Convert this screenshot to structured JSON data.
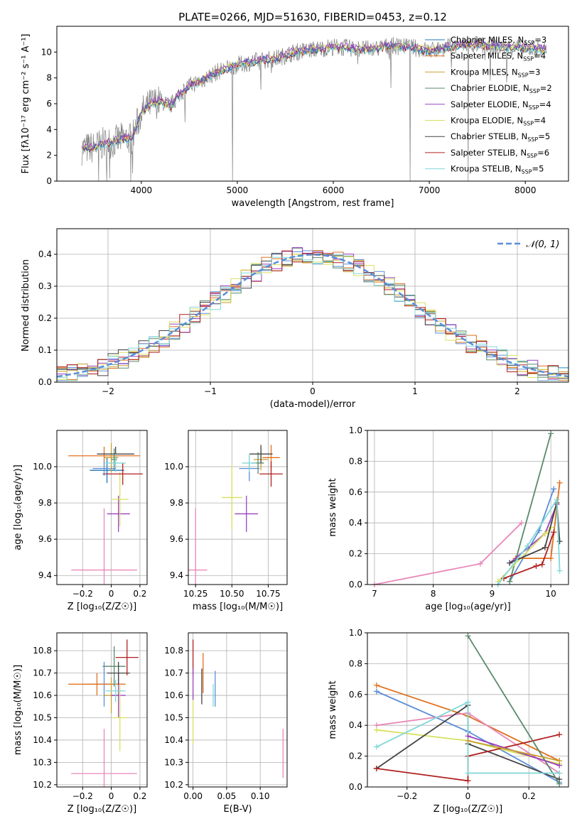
{
  "figure": {
    "title": "PLATE=0266, MJD=51630, FIBERID=0453, z=0.12"
  },
  "colors": {
    "Chabrier MILES": "#1f77b4",
    "Salpeter MILES": "#e07020",
    "Kroupa MILES": "#c8a030",
    "Chabrier ELODIE": "#5a8a6a",
    "Salpeter ELODIE": "#9a40c0",
    "Kroupa ELODIE": "#d8e060",
    "Chabrier STELIB": "#444444",
    "Salpeter STELIB": "#b02020",
    "Kroupa STELIB": "#80d8d8",
    "pink": "#e888b8",
    "blue": "#5b8ed8",
    "spectrum": "#808080"
  },
  "chart_data": [
    {
      "id": "spectrum",
      "type": "line",
      "xlabel": "wavelength [Angstrom, rest frame]",
      "ylabel": "Flux [fλ10⁻¹⁷ erg cm⁻² s⁻¹ A⁻¹]",
      "xlim": [
        3120,
        8450
      ],
      "ylim": [
        0,
        12
      ],
      "xticks": [
        4000,
        5000,
        6000,
        7000,
        8000
      ],
      "yticks": [
        0,
        2,
        4,
        6,
        8,
        10
      ],
      "legend_position": "top-right",
      "legend": [
        {
          "name": "Chabrier MILES, N",
          "sub": "SSP",
          "tail": "=3"
        },
        {
          "name": "Salpeter MILES, N",
          "sub": "SSP",
          "tail": "=4"
        },
        {
          "name": "Kroupa MILES, N",
          "sub": "SSP",
          "tail": "=3"
        },
        {
          "name": "Chabrier ELODIE, N",
          "sub": "SSP",
          "tail": "=2"
        },
        {
          "name": "Salpeter ELODIE, N",
          "sub": "SSP",
          "tail": "=4"
        },
        {
          "name": "Kroupa ELODIE, N",
          "sub": "SSP",
          "tail": "=4"
        },
        {
          "name": "Chabrier STELIB, N",
          "sub": "SSP",
          "tail": "=5"
        },
        {
          "name": "Salpeter STELIB, N",
          "sub": "SSP",
          "tail": "=6"
        },
        {
          "name": "Kroupa STELIB, N",
          "sub": "SSP",
          "tail": "=5"
        }
      ],
      "continuum": {
        "x": [
          3380,
          3500,
          3600,
          3700,
          3800,
          3900,
          4000,
          4100,
          4200,
          4300,
          4400,
          4500,
          4600,
          4800,
          5000,
          5200,
          5400,
          5600,
          5800,
          6000,
          6200,
          6400,
          6600,
          6800,
          7000,
          7200,
          7400,
          7600,
          7800,
          8000,
          8200
        ],
        "y": [
          2.5,
          2.6,
          2.9,
          3.0,
          3.3,
          3.3,
          5.3,
          6.0,
          6.2,
          5.8,
          6.8,
          7.4,
          7.7,
          8.5,
          9.0,
          9.3,
          9.5,
          10.0,
          10.2,
          10.4,
          10.3,
          10.2,
          10.5,
          10.4,
          10.1,
          10.4,
          10.6,
          10.5,
          10.4,
          10.3,
          10.2
        ]
      }
    },
    {
      "id": "residuals",
      "type": "histogram",
      "xlabel": "(data-model)/error",
      "ylabel": "Normed distribution",
      "xlim": [
        -2.5,
        2.5
      ],
      "ylim": [
        0,
        0.48
      ],
      "xticks": [
        -2,
        -1,
        0,
        1,
        2
      ],
      "yticks": [
        0.0,
        0.1,
        0.2,
        0.3,
        0.4
      ],
      "grid": true,
      "legend_position": "top-right",
      "normal_label": "𝒩(0, 1)"
    },
    {
      "id": "age-vs-Z",
      "type": "errorbar",
      "xlabel": "Z [log₁₀(Z/Z☉)]",
      "ylabel": "age  [log₁₀(age/yr)]",
      "xlim": [
        -0.38,
        0.25
      ],
      "ylim": [
        9.35,
        10.2
      ],
      "xticks": [
        -0.2,
        0.0,
        0.2
      ],
      "yticks": [
        9.4,
        9.6,
        9.8,
        10.0
      ],
      "grid": true,
      "points": [
        {
          "c": "Chabrier MILES",
          "x": -0.03,
          "y": 9.98,
          "xe": 0.12,
          "ye": 0.07
        },
        {
          "c": "Salpeter MILES",
          "x": -0.05,
          "y": 10.06,
          "xe": 0.25,
          "ye": 0.05
        },
        {
          "c": "Kroupa MILES",
          "x": 0.0,
          "y": 10.05,
          "xe": 0.05,
          "ye": 0.08
        },
        {
          "c": "Chabrier ELODIE",
          "x": 0.02,
          "y": 10.04,
          "xe": 0.02,
          "ye": 0.06
        },
        {
          "c": "Salpeter ELODIE",
          "x": 0.05,
          "y": 9.74,
          "xe": 0.08,
          "ye": 0.1
        },
        {
          "c": "Kroupa ELODIE",
          "x": 0.06,
          "y": 9.82,
          "xe": 0.06,
          "ye": 0.15
        },
        {
          "c": "Chabrier STELIB",
          "x": 0.03,
          "y": 10.07,
          "xe": 0.13,
          "ye": 0.04
        },
        {
          "c": "Salpeter STELIB",
          "x": 0.08,
          "y": 9.96,
          "xe": 0.14,
          "ye": 0.06
        },
        {
          "c": "Kroupa STELIB",
          "x": 0.03,
          "y": 10.02,
          "xe": 0.07,
          "ye": 0.05
        },
        {
          "c": "blue",
          "x": -0.05,
          "y": 9.99,
          "xe": 0.08,
          "ye": 0.04
        },
        {
          "c": "pink",
          "x": -0.05,
          "y": 9.43,
          "xe": 0.23,
          "ye": 0.34
        }
      ]
    },
    {
      "id": "age-vs-mass",
      "type": "errorbar",
      "xlabel": "mass [log₁₀(M/M☉)]",
      "ylabel": "",
      "xlim": [
        10.2,
        10.88
      ],
      "ylim": [
        9.35,
        10.2
      ],
      "xticks": [
        10.25,
        10.5,
        10.75
      ],
      "xticklabels": [
        "10.25",
        "10.50",
        "10.75"
      ],
      "yticks": [
        9.4,
        9.6,
        9.8,
        10.0
      ],
      "grid": true,
      "points": [
        {
          "c": "blue",
          "x": 10.62,
          "y": 9.99,
          "xe": 0.07,
          "ye": 0.07
        },
        {
          "c": "Salpeter MILES",
          "x": 10.77,
          "y": 10.05,
          "xe": 0.06,
          "ye": 0.07
        },
        {
          "c": "Kroupa MILES",
          "x": 10.7,
          "y": 10.04,
          "xe": 0.05,
          "ye": 0.06
        },
        {
          "c": "Chabrier ELODIE",
          "x": 10.68,
          "y": 10.02,
          "xe": 0.04,
          "ye": 0.06
        },
        {
          "c": "Salpeter ELODIE",
          "x": 10.6,
          "y": 9.74,
          "xe": 0.08,
          "ye": 0.1
        },
        {
          "c": "Kroupa ELODIE",
          "x": 10.5,
          "y": 9.83,
          "xe": 0.07,
          "ye": 0.18
        },
        {
          "c": "Chabrier STELIB",
          "x": 10.7,
          "y": 10.07,
          "xe": 0.08,
          "ye": 0.05
        },
        {
          "c": "Salpeter STELIB",
          "x": 10.77,
          "y": 9.96,
          "xe": 0.08,
          "ye": 0.07
        },
        {
          "c": "Kroupa STELIB",
          "x": 10.62,
          "y": 10.02,
          "xe": 0.05,
          "ye": 0.05
        },
        {
          "c": "pink",
          "x": 10.25,
          "y": 9.43,
          "xe": 0.08,
          "ye": 0.34
        }
      ]
    },
    {
      "id": "weight-vs-age",
      "type": "line",
      "xlabel": "age  [log₁₀(age/yr)]",
      "ylabel": "mass weight",
      "xlim": [
        6.88,
        10.3
      ],
      "ylim": [
        0,
        1.0
      ],
      "xticks": [
        7,
        8,
        9,
        10
      ],
      "yticks": [
        0.0,
        0.2,
        0.4,
        0.6,
        0.8,
        1.0
      ],
      "grid": true,
      "series": [
        {
          "c": "pink",
          "x": [
            7.0,
            8.8,
            9.5
          ],
          "y": [
            0.0,
            0.135,
            0.4
          ]
        },
        {
          "c": "blue",
          "x": [
            9.3,
            9.8,
            10.05
          ],
          "y": [
            0.02,
            0.35,
            0.62
          ]
        },
        {
          "c": "Salpeter MILES",
          "x": [
            9.4,
            10.0,
            10.15
          ],
          "y": [
            0.17,
            0.17,
            0.66
          ]
        },
        {
          "c": "Chabrier ELODIE",
          "x": [
            9.3,
            10.0
          ],
          "y": [
            0.02,
            0.98
          ]
        },
        {
          "c": "Salpeter ELODIE",
          "x": [
            9.3,
            9.9,
            10.1
          ],
          "y": [
            0.14,
            0.33,
            0.52
          ]
        },
        {
          "c": "Kroupa ELODIE",
          "x": [
            9.1,
            9.9,
            10.0
          ],
          "y": [
            0.02,
            0.33,
            0.37
          ]
        },
        {
          "c": "Chabrier STELIB",
          "x": [
            9.3,
            9.9,
            10.1,
            10.15
          ],
          "y": [
            0.14,
            0.24,
            0.53,
            0.28
          ]
        },
        {
          "c": "Salpeter STELIB",
          "x": [
            9.2,
            9.75,
            9.85,
            10.05
          ],
          "y": [
            0.04,
            0.12,
            0.13,
            0.34
          ]
        },
        {
          "c": "Kroupa STELIB",
          "x": [
            9.1,
            9.6,
            10.1,
            10.15
          ],
          "y": [
            0.0,
            0.25,
            0.55,
            0.09
          ]
        }
      ]
    },
    {
      "id": "mass-vs-Z",
      "type": "errorbar",
      "xlabel": "Z [log₁₀(Z/Z☉)]",
      "ylabel": "mass [log₁₀(M/M☉)]",
      "xlim": [
        -0.38,
        0.25
      ],
      "ylim": [
        10.19,
        10.88
      ],
      "xticks": [
        -0.2,
        0.0,
        0.2
      ],
      "yticks": [
        10.2,
        10.3,
        10.4,
        10.5,
        10.6,
        10.7,
        10.8
      ],
      "grid": true,
      "points": [
        {
          "c": "blue",
          "x": -0.05,
          "y": 10.65,
          "xe": 0.12,
          "ye": 0.1
        },
        {
          "c": "Salpeter MILES",
          "x": -0.1,
          "y": 10.65,
          "xe": 0.2,
          "ye": 0.05
        },
        {
          "c": "Kroupa MILES",
          "x": 0.0,
          "y": 10.6,
          "xe": 0.05,
          "ye": 0.08
        },
        {
          "c": "Chabrier ELODIE",
          "x": 0.02,
          "y": 10.73,
          "xe": 0.08,
          "ye": 0.09
        },
        {
          "c": "Salpeter ELODIE",
          "x": 0.05,
          "y": 10.6,
          "xe": 0.05,
          "ye": 0.1
        },
        {
          "c": "Kroupa ELODIE",
          "x": 0.06,
          "y": 10.5,
          "xe": 0.06,
          "ye": 0.15
        },
        {
          "c": "Chabrier STELIB",
          "x": 0.05,
          "y": 10.7,
          "xe": 0.08,
          "ye": 0.05
        },
        {
          "c": "Salpeter STELIB",
          "x": 0.11,
          "y": 10.77,
          "xe": 0.08,
          "ye": 0.08
        },
        {
          "c": "Kroupa STELIB",
          "x": 0.03,
          "y": 10.62,
          "xe": 0.07,
          "ye": 0.05
        },
        {
          "c": "pink",
          "x": -0.05,
          "y": 10.25,
          "xe": 0.23,
          "ye": 0.2
        }
      ]
    },
    {
      "id": "mass-vs-EBV",
      "type": "errorbar",
      "xlabel": "E(B-V)",
      "ylabel": "",
      "xlim": [
        -0.007,
        0.14
      ],
      "ylim": [
        10.19,
        10.88
      ],
      "xticks": [
        0.0,
        0.05,
        0.1
      ],
      "xticklabels": [
        "0.00",
        "0.05",
        "0.10"
      ],
      "yticks": [
        10.2,
        10.3,
        10.4,
        10.5,
        10.6,
        10.7,
        10.8
      ],
      "grid": true,
      "points": [
        {
          "c": "Salpeter STELIB",
          "x": 0.0,
          "y": 10.77,
          "xe": 0.0,
          "ye": 0.08
        },
        {
          "c": "Kroupa ELODIE",
          "x": 0.0,
          "y": 10.5,
          "xe": 0.0,
          "ye": 0.12
        },
        {
          "c": "Salpeter ELODIE",
          "x": 0.0,
          "y": 10.65,
          "xe": 0.0,
          "ye": 0.07
        },
        {
          "c": "Salpeter MILES",
          "x": 0.015,
          "y": 10.7,
          "xe": 0.0,
          "ye": 0.09
        },
        {
          "c": "Chabrier STELIB",
          "x": 0.013,
          "y": 10.64,
          "xe": 0.0,
          "ye": 0.08
        },
        {
          "c": "blue",
          "x": 0.033,
          "y": 10.63,
          "xe": 0.0,
          "ye": 0.08
        },
        {
          "c": "Kroupa STELIB",
          "x": 0.03,
          "y": 10.6,
          "xe": 0.0,
          "ye": 0.05
        },
        {
          "c": "pink",
          "x": 0.134,
          "y": 10.34,
          "xe": 0.0,
          "ye": 0.11
        }
      ]
    },
    {
      "id": "weight-vs-Z",
      "type": "line",
      "xlabel": "Z [log₁₀(Z/Z☉)]",
      "ylabel": "mass weight",
      "xlim": [
        -0.33,
        0.33
      ],
      "ylim": [
        0,
        1.0
      ],
      "xticks": [
        -0.2,
        0.0,
        0.2
      ],
      "yticks": [
        0.0,
        0.2,
        0.4,
        0.6,
        0.8,
        1.0
      ],
      "grid": true,
      "series": [
        {
          "c": "Salpeter MILES",
          "x": [
            -0.3,
            0.0,
            0.3
          ],
          "y": [
            0.66,
            0.46,
            0.17
          ]
        },
        {
          "c": "blue",
          "x": [
            -0.3,
            0.0,
            0.3
          ],
          "y": [
            0.62,
            0.36,
            0.03
          ]
        },
        {
          "c": "pink",
          "x": [
            -0.3,
            0.0,
            0.3
          ],
          "y": [
            0.4,
            0.48,
            0.09
          ]
        },
        {
          "c": "Kroupa ELODIE",
          "x": [
            -0.3,
            0.0,
            0.3
          ],
          "y": [
            0.37,
            0.3,
            0.15
          ]
        },
        {
          "c": "Chabrier STELIB",
          "x": [
            -0.3,
            0.0,
            0.0,
            0.3
          ],
          "y": [
            0.12,
            0.53,
            0.28,
            0.05
          ]
        },
        {
          "c": "Salpeter STELIB",
          "x": [
            -0.3,
            0.0,
            0.0,
            0.3
          ],
          "y": [
            0.12,
            0.04,
            0.2,
            0.34
          ]
        },
        {
          "c": "Chabrier ELODIE",
          "x": [
            0.0,
            0.3
          ],
          "y": [
            0.98,
            0.02
          ]
        },
        {
          "c": "Kroupa STELIB",
          "x": [
            -0.3,
            0.0,
            0.0,
            0.3
          ],
          "y": [
            0.26,
            0.55,
            0.09,
            0.09
          ]
        },
        {
          "c": "Salpeter ELODIE",
          "x": [
            0.0,
            0.3
          ],
          "y": [
            0.33,
            0.14
          ]
        },
        {
          "c": "Kroupa MILES",
          "x": [
            0.0,
            0.3
          ],
          "y": [
            0.3,
            0.17
          ]
        }
      ]
    }
  ]
}
